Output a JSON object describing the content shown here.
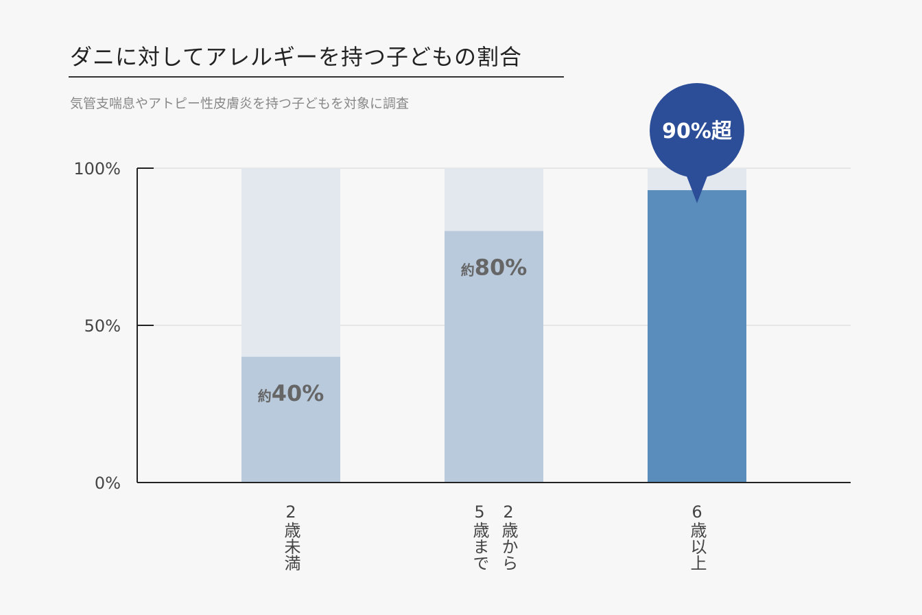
{
  "chart_data": {
    "type": "bar",
    "stacked_background": true,
    "title": "ダニに対してアレルギーを持つ子どもの割合",
    "subtitle": "気管支喘息やアトピー性皮膚炎を持つ子どもを対象に調査",
    "categories": [
      "2歳未満",
      "2歳から\n5歳まで",
      "6歳以上"
    ],
    "values": [
      40,
      80,
      93
    ],
    "data_labels": [
      {
        "prefix": "約",
        "value": "40%"
      },
      {
        "prefix": "約",
        "value": "80%"
      },
      null
    ],
    "callout": "90%超",
    "ylim": [
      0,
      100
    ],
    "yticks": [
      0,
      50,
      100
    ],
    "ytick_labels": [
      "0%",
      "50%",
      "100%"
    ],
    "gridlines": [
      50,
      100
    ],
    "xlabel": "",
    "ylabel": "",
    "colors": {
      "track": "#e3e8ef",
      "bar": "#b9cadd",
      "highlight": "#5a8dbc",
      "callout": "#2c4d97",
      "label": "#666666",
      "grid": "#d4d4d4",
      "axis": "#222222"
    }
  }
}
